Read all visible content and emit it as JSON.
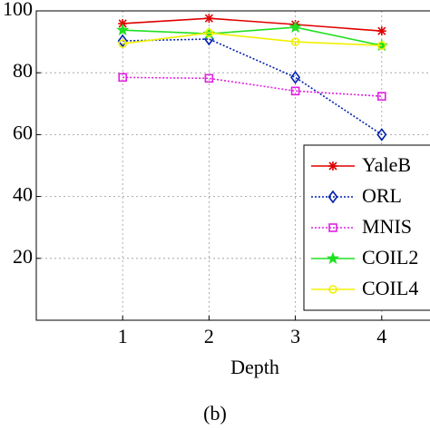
{
  "chart_data": {
    "type": "line",
    "x_label": "Depth",
    "caption": "(b)",
    "x": [
      1,
      2,
      3,
      4
    ],
    "series": [
      {
        "name": "YaleB",
        "color": "#e00000",
        "marker": "asterisk",
        "dash": "solid",
        "values": [
          95.9,
          97.6,
          95.6,
          93.5
        ]
      },
      {
        "name": "ORL",
        "color": "#0020b0",
        "marker": "diamond",
        "dash": "dotted",
        "values": [
          90.3,
          90.9,
          78.5,
          60
        ]
      },
      {
        "name": "MNIS",
        "color": "#e020e0",
        "marker": "square",
        "dash": "dotted",
        "values": [
          78.5,
          78.2,
          74.1,
          72.4
        ]
      },
      {
        "name": "COIL2",
        "color": "#20e020",
        "marker": "star",
        "dash": "solid",
        "values": [
          93.8,
          92.6,
          94.7,
          88.8
        ]
      },
      {
        "name": "COIL4",
        "color": "#f0f000",
        "marker": "circle",
        "dash": "solid",
        "values": [
          89.4,
          92.9,
          90,
          88.8
        ]
      }
    ],
    "xlim": [
      0,
      5
    ],
    "xticks": [
      1,
      2,
      3,
      4
    ],
    "ylim": [
      0,
      100
    ],
    "yticks": [
      20,
      40,
      60,
      80,
      100
    ],
    "grid": true,
    "legend": "right"
  }
}
